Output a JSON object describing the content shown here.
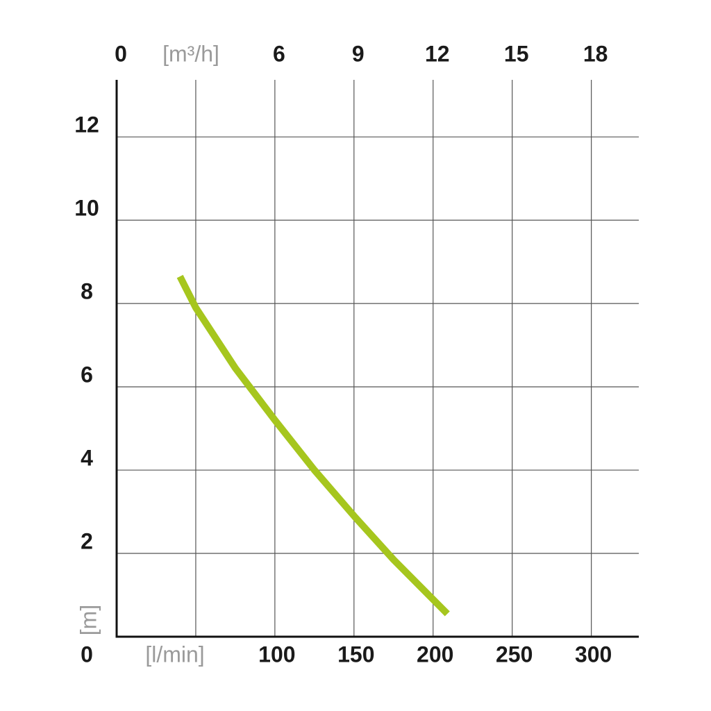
{
  "chart_data": {
    "type": "line",
    "x_label": "[l/min]",
    "x2_label": "[m³/h]",
    "y_label": "[m]",
    "x": [
      40,
      50,
      75,
      100,
      125,
      150,
      175,
      209
    ],
    "series": [
      {
        "color": "#a6c61e",
        "values": [
          8.65,
          7.9,
          6.45,
          5.2,
          4.0,
          2.9,
          1.85,
          0.55
        ]
      }
    ],
    "xlim": [
      0,
      330
    ],
    "xticks": [
      100,
      150,
      200,
      250,
      300
    ],
    "xgrid": [
      50,
      100,
      150,
      200,
      250,
      300
    ],
    "x2lim": [
      0,
      19.8
    ],
    "x2ticks": [
      0,
      6,
      9,
      12,
      15,
      18
    ],
    "ylim": [
      0,
      13.37
    ],
    "yticks": [
      0,
      2,
      4,
      6,
      8,
      10,
      12
    ],
    "grid": true
  }
}
